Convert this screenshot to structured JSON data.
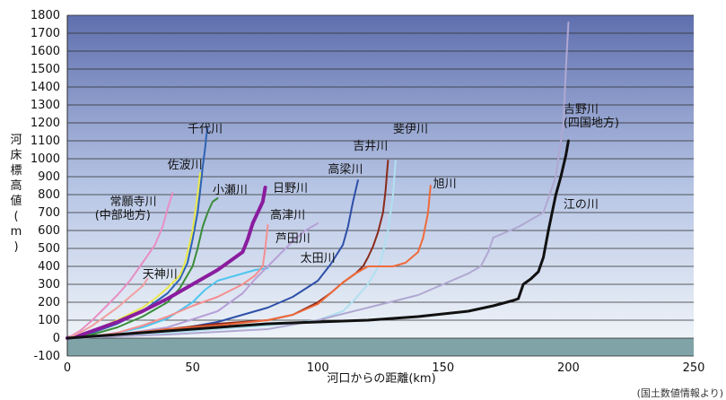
{
  "chart_data": {
    "type": "line",
    "xlabel": "河口からの距離(km)",
    "ylabel": "河床標高値(m)",
    "source": "(国土数値情報より)",
    "xlim": [
      0,
      250
    ],
    "ylim": [
      -100,
      1800
    ],
    "xticks": [
      "0",
      "50",
      "100",
      "150",
      "200",
      "250"
    ],
    "yticks": [
      "-100",
      "0",
      "100",
      "200",
      "300",
      "400",
      "500",
      "600",
      "700",
      "800",
      "900",
      "1000",
      "1100",
      "1200",
      "1300",
      "1400",
      "1500",
      "1600",
      "1700",
      "1800"
    ],
    "grid": true,
    "series": [
      {
        "name": "千代川",
        "color": "#2e63b4",
        "width": 2,
        "x": [
          0,
          10,
          20,
          30,
          40,
          45,
          48,
          50,
          52,
          53,
          54,
          55,
          55.5,
          56
        ],
        "y": [
          0,
          30,
          80,
          150,
          250,
          330,
          420,
          550,
          700,
          820,
          950,
          1060,
          1130,
          1170
        ]
      },
      {
        "name": "佐波川",
        "color": "#e8e84a",
        "width": 2,
        "x": [
          0,
          10,
          20,
          30,
          35,
          40,
          45,
          47,
          50,
          52,
          53
        ],
        "y": [
          0,
          40,
          100,
          170,
          220,
          280,
          350,
          420,
          600,
          800,
          920
        ]
      },
      {
        "name": "小瀬川",
        "color": "#3a8d3a",
        "width": 2,
        "x": [
          0,
          10,
          20,
          30,
          40,
          45,
          50,
          52,
          54,
          56,
          58,
          60
        ],
        "y": [
          0,
          20,
          60,
          120,
          200,
          280,
          400,
          500,
          620,
          700,
          760,
          780
        ]
      },
      {
        "name": "日野川",
        "color": "#8a1c9e",
        "width": 4,
        "x": [
          0,
          5,
          10,
          20,
          30,
          40,
          50,
          60,
          65,
          70,
          72,
          74,
          76,
          78,
          79
        ],
        "y": [
          0,
          15,
          40,
          90,
          150,
          220,
          300,
          380,
          430,
          480,
          550,
          640,
          700,
          760,
          840
        ]
      },
      {
        "name": "常願寺川",
        "color": "#e78fc4",
        "width": 2,
        "x": [
          0,
          5,
          10,
          15,
          20,
          25,
          30,
          35,
          38,
          40,
          42
        ],
        "y": [
          0,
          40,
          100,
          170,
          240,
          320,
          420,
          520,
          620,
          720,
          810
        ]
      },
      {
        "name": "天神川",
        "color": "#f0a0a0",
        "width": 2,
        "x": [
          0,
          5,
          10,
          15,
          20,
          25,
          30,
          32
        ],
        "y": [
          0,
          30,
          70,
          120,
          170,
          230,
          290,
          330
        ]
      },
      {
        "name": "高津川",
        "color": "#4ec5ef",
        "width": 2,
        "x": [
          0,
          10,
          20,
          30,
          40,
          50,
          55,
          60,
          65,
          70,
          75,
          80
        ],
        "y": [
          0,
          10,
          30,
          60,
          110,
          200,
          270,
          320,
          340,
          360,
          380,
          390
        ]
      },
      {
        "name": "芦田川",
        "color": "#f49090",
        "width": 2,
        "x": [
          0,
          10,
          20,
          30,
          40,
          50,
          60,
          70,
          75,
          78,
          79,
          80
        ],
        "y": [
          0,
          10,
          30,
          70,
          120,
          180,
          230,
          300,
          350,
          400,
          500,
          630
        ]
      },
      {
        "name": "太田川",
        "color": "#b7a0d8",
        "width": 2,
        "x": [
          0,
          20,
          40,
          60,
          70,
          75,
          80,
          85,
          90,
          95,
          100
        ],
        "y": [
          0,
          20,
          60,
          150,
          250,
          330,
          400,
          470,
          540,
          600,
          640
        ]
      },
      {
        "name": "高梁川",
        "color": "#2d4fa8",
        "width": 2,
        "x": [
          0,
          20,
          40,
          60,
          70,
          80,
          90,
          100,
          105,
          110,
          112,
          114,
          116
        ],
        "y": [
          0,
          10,
          40,
          90,
          130,
          170,
          230,
          320,
          410,
          520,
          620,
          760,
          880
        ]
      },
      {
        "name": "吉井川",
        "color": "#8b2a1a",
        "width": 2,
        "x": [
          0,
          20,
          40,
          60,
          80,
          90,
          100,
          105,
          110,
          115,
          118,
          120,
          122,
          124,
          126,
          127,
          128
        ],
        "y": [
          0,
          20,
          50,
          80,
          100,
          130,
          200,
          250,
          310,
          360,
          400,
          450,
          510,
          590,
          700,
          820,
          990
        ]
      },
      {
        "name": "斐伊川",
        "color": "#b0e0f0",
        "width": 2,
        "x": [
          0,
          20,
          40,
          60,
          80,
          100,
          110,
          115,
          120,
          125,
          128,
          130,
          131
        ],
        "y": [
          0,
          10,
          30,
          50,
          70,
          100,
          150,
          220,
          300,
          420,
          600,
          800,
          990
        ]
      },
      {
        "name": "旭川",
        "color": "#ef6a3b",
        "width": 2,
        "x": [
          0,
          20,
          40,
          60,
          80,
          90,
          95,
          100,
          105,
          110,
          115,
          120,
          130,
          135,
          140,
          142,
          144,
          145
        ],
        "y": [
          0,
          20,
          50,
          70,
          100,
          130,
          160,
          190,
          250,
          310,
          360,
          400,
          400,
          420,
          480,
          560,
          700,
          850
        ]
      },
      {
        "name": "吉野川(四国地方)",
        "color": "#b0a8d2",
        "width": 2,
        "x": [
          0,
          40,
          80,
          100,
          120,
          140,
          150,
          160,
          165,
          168,
          170,
          180,
          190,
          195,
          198,
          199,
          200
        ],
        "y": [
          0,
          20,
          50,
          100,
          170,
          240,
          300,
          360,
          400,
          480,
          560,
          620,
          700,
          900,
          1200,
          1500,
          1760
        ]
      },
      {
        "name": "江の川",
        "color": "#111111",
        "width": 3,
        "x": [
          0,
          40,
          80,
          100,
          120,
          140,
          160,
          170,
          178,
          180,
          182,
          185,
          188,
          190,
          192,
          195,
          197,
          199,
          200
        ],
        "y": [
          0,
          40,
          80,
          90,
          100,
          120,
          150,
          180,
          210,
          220,
          300,
          330,
          370,
          450,
          600,
          800,
          900,
          1020,
          1100
        ]
      }
    ],
    "labels": [
      {
        "text": "千代川",
        "x": 48,
        "y": 1145
      },
      {
        "text": "佐波川",
        "x": 40,
        "y": 945
      },
      {
        "text": "小瀬川",
        "x": 58,
        "y": 805
      },
      {
        "text": "日野川",
        "x": 82,
        "y": 815
      },
      {
        "text": "常願寺川",
        "x": 17,
        "y": 740
      },
      {
        "text": "(中部地方)",
        "x": 11,
        "y": 665
      },
      {
        "text": "高津川",
        "x": 81,
        "y": 665
      },
      {
        "text": "芦田川",
        "x": 83,
        "y": 535
      },
      {
        "text": "太田川",
        "x": 93,
        "y": 425
      },
      {
        "text": "天神川",
        "x": 30,
        "y": 335
      },
      {
        "text": "高梁川",
        "x": 104,
        "y": 920
      },
      {
        "text": "吉井川",
        "x": 114,
        "y": 1050
      },
      {
        "text": "斐伊川",
        "x": 130,
        "y": 1145
      },
      {
        "text": "旭川",
        "x": 146,
        "y": 840
      },
      {
        "text": "吉野川",
        "x": 198,
        "y": 1255
      },
      {
        "text": "(四国地方)",
        "x": 198,
        "y": 1180
      },
      {
        "text": "江の川",
        "x": 198,
        "y": 725
      }
    ]
  }
}
